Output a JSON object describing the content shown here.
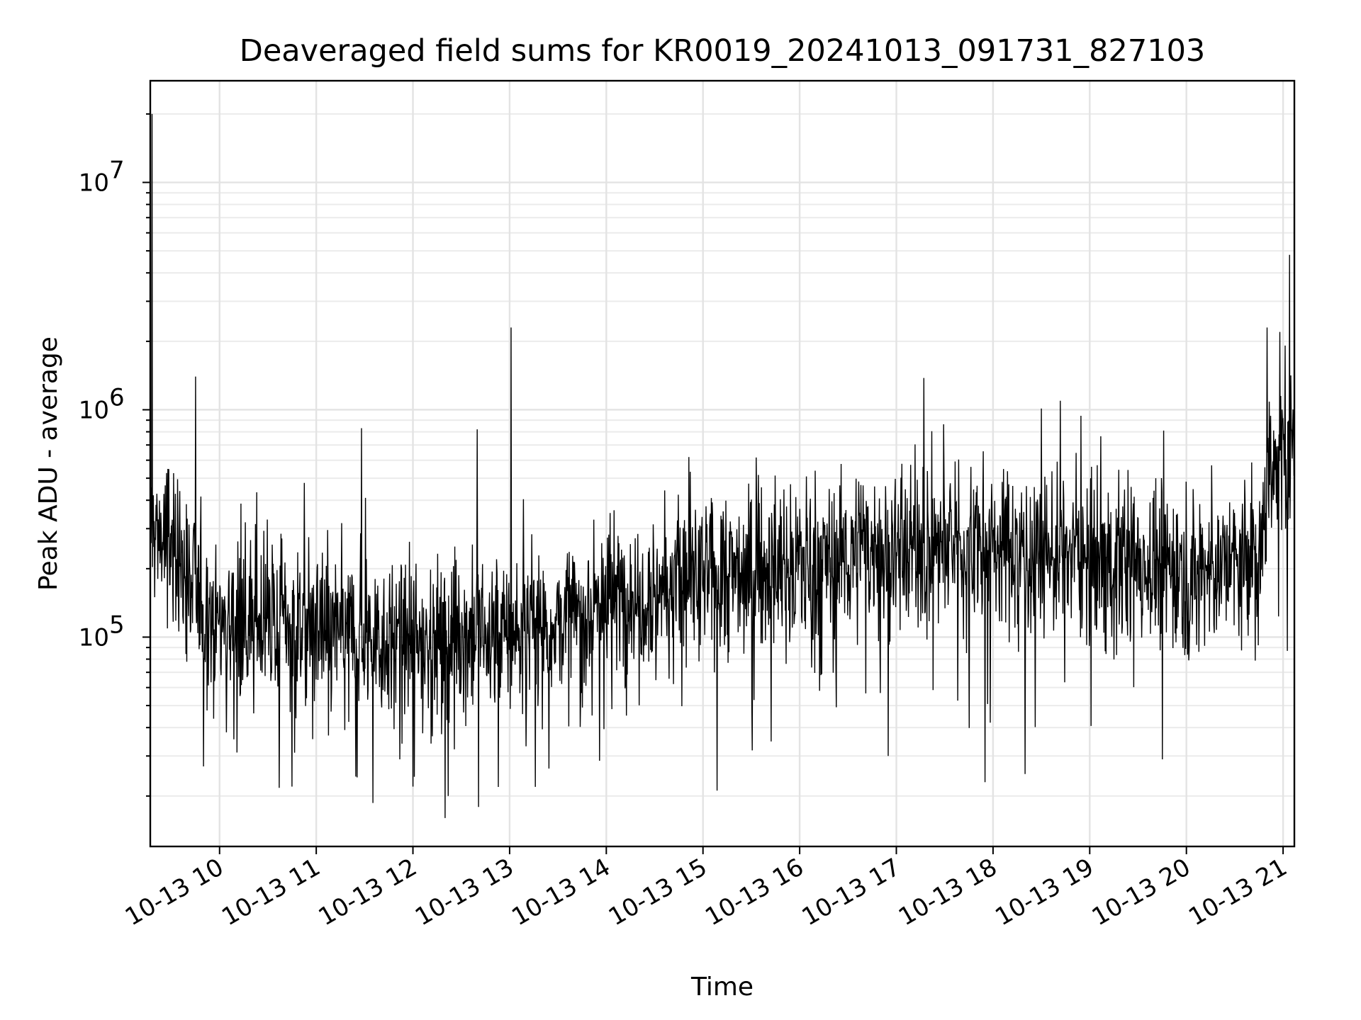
{
  "chart_data": {
    "type": "line",
    "title": "Deaveraged field sums for KR0019_20241013_091731_827103",
    "xlabel": "Time",
    "ylabel": "Peak ADU - average",
    "yscale": "log",
    "grid": true,
    "xlim": [
      "2024-10-13 09:17",
      "2024-10-13 21:07"
    ],
    "ylim": [
      12000,
      28000000
    ],
    "x_ticks": [
      {
        "value": "2024-10-13 10:00",
        "label": "10-13 10"
      },
      {
        "value": "2024-10-13 11:00",
        "label": "10-13 11"
      },
      {
        "value": "2024-10-13 12:00",
        "label": "10-13 12"
      },
      {
        "value": "2024-10-13 13:00",
        "label": "10-13 13"
      },
      {
        "value": "2024-10-13 14:00",
        "label": "10-13 14"
      },
      {
        "value": "2024-10-13 15:00",
        "label": "10-13 15"
      },
      {
        "value": "2024-10-13 16:00",
        "label": "10-13 16"
      },
      {
        "value": "2024-10-13 17:00",
        "label": "10-13 17"
      },
      {
        "value": "2024-10-13 18:00",
        "label": "10-13 18"
      },
      {
        "value": "2024-10-13 19:00",
        "label": "10-13 19"
      },
      {
        "value": "2024-10-13 20:00",
        "label": "10-13 20"
      },
      {
        "value": "2024-10-13 21:00",
        "label": "10-13 21"
      }
    ],
    "y_ticks": [
      {
        "value": 100000,
        "base": "10",
        "exp": "5"
      },
      {
        "value": 1000000,
        "base": "10",
        "exp": "6"
      },
      {
        "value": 10000000,
        "base": "10",
        "exp": "7"
      }
    ],
    "series": [
      {
        "color": "#000000",
        "trend": [
          {
            "t": "2024-10-13 09:17",
            "y": 300000
          },
          {
            "t": "2024-10-13 09:30",
            "y": 260000
          },
          {
            "t": "2024-10-13 09:45",
            "y": 150000
          },
          {
            "t": "2024-10-13 10:00",
            "y": 120000
          },
          {
            "t": "2024-10-13 11:00",
            "y": 110000
          },
          {
            "t": "2024-10-13 12:00",
            "y": 95000
          },
          {
            "t": "2024-10-13 13:00",
            "y": 105000
          },
          {
            "t": "2024-10-13 13:40",
            "y": 120000
          },
          {
            "t": "2024-10-13 14:00",
            "y": 150000
          },
          {
            "t": "2024-10-13 15:00",
            "y": 180000
          },
          {
            "t": "2024-10-13 16:00",
            "y": 210000
          },
          {
            "t": "2024-10-13 17:00",
            "y": 250000
          },
          {
            "t": "2024-10-13 18:00",
            "y": 250000
          },
          {
            "t": "2024-10-13 19:00",
            "y": 230000
          },
          {
            "t": "2024-10-13 20:00",
            "y": 200000
          },
          {
            "t": "2024-10-13 20:45",
            "y": 210000
          },
          {
            "t": "2024-10-13 20:50",
            "y": 500000
          },
          {
            "t": "2024-10-13 21:07",
            "y": 650000
          }
        ],
        "spikes": [
          {
            "t": "2024-10-13 09:18",
            "y": 20000000
          },
          {
            "t": "2024-10-13 09:45",
            "y": 1400000
          },
          {
            "t": "2024-10-13 11:28",
            "y": 830000
          },
          {
            "t": "2024-10-13 12:40",
            "y": 820000
          },
          {
            "t": "2024-10-13 13:01",
            "y": 2300000
          },
          {
            "t": "2024-10-13 17:17",
            "y": 1380000
          },
          {
            "t": "2024-10-13 20:50",
            "y": 2300000
          },
          {
            "t": "2024-10-13 20:58",
            "y": 2200000
          },
          {
            "t": "2024-10-13 21:04",
            "y": 4800000
          }
        ],
        "dips": [
          {
            "t": "2024-10-13 09:50",
            "y": 27000
          },
          {
            "t": "2024-10-13 10:45",
            "y": 22000
          },
          {
            "t": "2024-10-13 12:00",
            "y": 22000
          },
          {
            "t": "2024-10-13 12:20",
            "y": 16000
          },
          {
            "t": "2024-10-13 12:22",
            "y": 20000
          },
          {
            "t": "2024-10-13 16:55",
            "y": 30000
          },
          {
            "t": "2024-10-13 17:55",
            "y": 23000
          },
          {
            "t": "2024-10-13 18:20",
            "y": 25000
          },
          {
            "t": "2024-10-13 19:45",
            "y": 29000
          }
        ]
      }
    ]
  }
}
